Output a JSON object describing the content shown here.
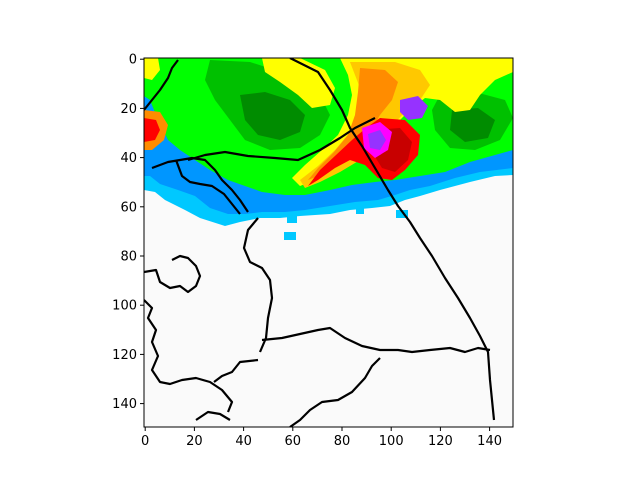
{
  "colors": {
    "background": "#fafafa",
    "boundary": "#000000",
    "radar_scale": [
      "#0096ff",
      "#00c8ff",
      "#00ff00",
      "#00c000",
      "#008c00",
      "#ffff00",
      "#ffc800",
      "#ff8c00",
      "#ff0000",
      "#c80000",
      "#ff00ff",
      "#9632ff"
    ]
  },
  "chart_data": {
    "type": "heatmap",
    "title": "",
    "xlabel": "",
    "ylabel": "",
    "xlim": [
      0,
      150
    ],
    "ylim": [
      150,
      0
    ],
    "x_ticks": [
      "0",
      "20",
      "40",
      "60",
      "80",
      "100",
      "120",
      "140"
    ],
    "y_ticks": [
      "0",
      "20",
      "40",
      "60",
      "80",
      "100",
      "120",
      "140"
    ],
    "grid": false,
    "legend": "none",
    "description_values": {
      "precip_region_top_rows": [
        0,
        70
      ],
      "intense_core_center": [
        95,
        35
      ],
      "boundaries_present": true
    }
  }
}
